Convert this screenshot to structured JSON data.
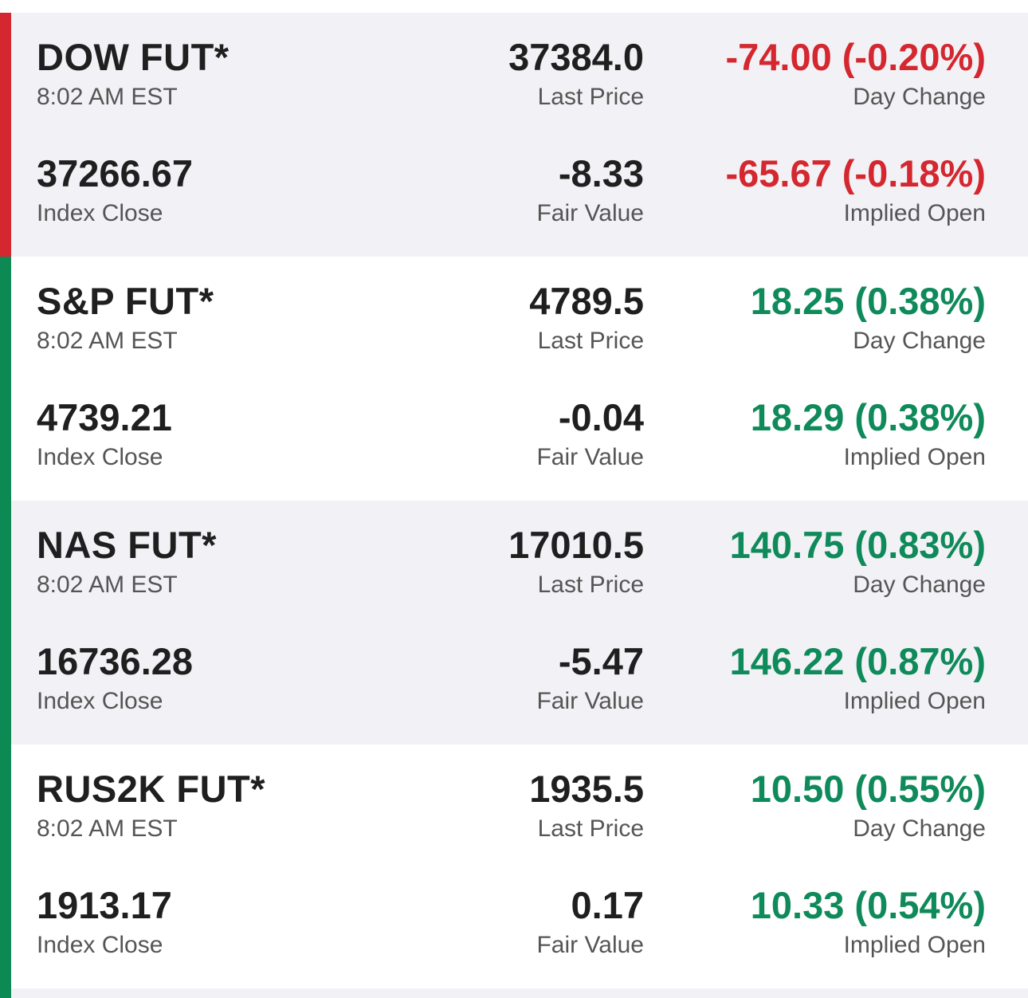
{
  "colors": {
    "up": "#0f8a5a",
    "down": "#d4272f",
    "stripe_up": "#0d8a53",
    "stripe_down": "#d4272f"
  },
  "futures": [
    {
      "name": "DOW FUT*",
      "time": "8:02 AM EST",
      "last_price": "37384.0",
      "last_price_label": "Last Price",
      "day_change": "-74.00 (-0.20%)",
      "day_change_label": "Day Change",
      "index_close": "37266.67",
      "index_close_label": "Index Close",
      "fair_value": "-8.33",
      "fair_value_label": "Fair Value",
      "implied_open": "-65.67 (-0.18%)",
      "implied_open_label": "Implied Open",
      "direction": "down"
    },
    {
      "name": "S&P FUT*",
      "time": "8:02 AM EST",
      "last_price": "4789.5",
      "last_price_label": "Last Price",
      "day_change": "18.25 (0.38%)",
      "day_change_label": "Day Change",
      "index_close": "4739.21",
      "index_close_label": "Index Close",
      "fair_value": "-0.04",
      "fair_value_label": "Fair Value",
      "implied_open": "18.29 (0.38%)",
      "implied_open_label": "Implied Open",
      "direction": "up"
    },
    {
      "name": "NAS FUT*",
      "time": "8:02 AM EST",
      "last_price": "17010.5",
      "last_price_label": "Last Price",
      "day_change": "140.75 (0.83%)",
      "day_change_label": "Day Change",
      "index_close": "16736.28",
      "index_close_label": "Index Close",
      "fair_value": "-5.47",
      "fair_value_label": "Fair Value",
      "implied_open": "146.22 (0.87%)",
      "implied_open_label": "Implied Open",
      "direction": "up"
    },
    {
      "name": "RUS2K FUT*",
      "time": "8:02 AM EST",
      "last_price": "1935.5",
      "last_price_label": "Last Price",
      "day_change": "10.50 (0.55%)",
      "day_change_label": "Day Change",
      "index_close": "1913.17",
      "index_close_label": "Index Close",
      "fair_value": "0.17",
      "fair_value_label": "Fair Value",
      "implied_open": "10.33 (0.54%)",
      "implied_open_label": "Implied Open",
      "direction": "up"
    }
  ]
}
